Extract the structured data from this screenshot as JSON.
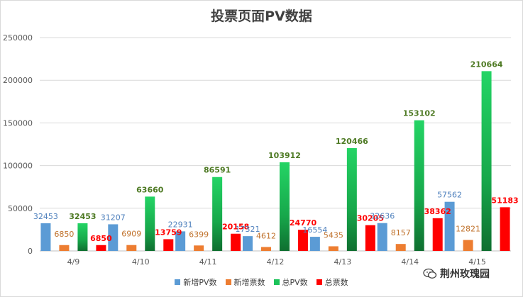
{
  "chart_data": {
    "type": "bar",
    "title": "投票页面PV数据",
    "categories": [
      "4/9",
      "4/10",
      "4/11",
      "4/12",
      "4/13",
      "4/14",
      "4/15"
    ],
    "ylim": [
      0,
      250000
    ],
    "yticks": [
      0,
      50000,
      100000,
      150000,
      200000,
      250000
    ],
    "grid": true,
    "legend_position": "bottom",
    "series": [
      {
        "name": "新增PV数",
        "color": "#5b9bd5",
        "label_color": "#4f81bd",
        "values": [
          32453,
          31207,
          22931,
          17321,
          16554,
          32636,
          57562
        ]
      },
      {
        "name": "新增票数",
        "color": "#ed7d31",
        "label_color": "#c0722c",
        "values": [
          6850,
          6909,
          6399,
          4612,
          5435,
          8157,
          12821
        ]
      },
      {
        "name": "总PV数",
        "color": "#1cc35a",
        "label_color": "#4e7a24",
        "values": [
          32453,
          63660,
          86591,
          103912,
          120466,
          153102,
          210664
        ]
      },
      {
        "name": "总票数",
        "color": "#ff0000",
        "label_color": "#ff0000",
        "values": [
          6850,
          13759,
          20158,
          24770,
          30205,
          38362,
          51183
        ]
      }
    ]
  },
  "watermark": {
    "text": "荆州玫瑰园",
    "icon": "wechat-icon"
  }
}
